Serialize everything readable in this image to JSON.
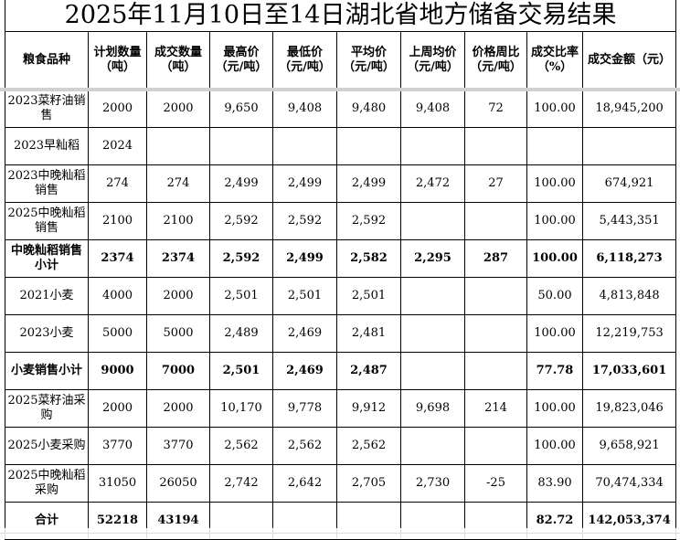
{
  "title": "2025年11月10日至14日湖北省地方储备交易结果",
  "table": {
    "columns": [
      "粮食品种",
      "计划数量\n（吨）",
      "成交数量\n（吨）",
      "最高价\n（元/吨）",
      "最低价\n（元/吨）",
      "平均价\n（元/吨）",
      "上周均价\n（元/吨）",
      "价格周比\n（元/吨）",
      "成交比率\n（%）",
      "成交金额（元）"
    ],
    "rows": [
      {
        "bold": false,
        "cells": [
          "2023菜籽油销售",
          "2000",
          "2000",
          "9,650",
          "9,408",
          "9,480",
          "9,408",
          "72",
          "100.00",
          "18,945,200"
        ]
      },
      {
        "bold": false,
        "cells": [
          "2023早籼稻",
          "2024",
          "",
          "",
          "",
          "",
          "",
          "",
          "",
          ""
        ]
      },
      {
        "bold": false,
        "cells": [
          "2023中晚籼稻销售",
          "274",
          "274",
          "2,499",
          "2,499",
          "2,499",
          "2,472",
          "27",
          "100.00",
          "674,921"
        ]
      },
      {
        "bold": false,
        "cells": [
          "2025中晚籼稻销售",
          "2100",
          "2100",
          "2,592",
          "2,592",
          "2,592",
          "",
          "",
          "100.00",
          "5,443,351"
        ]
      },
      {
        "bold": true,
        "cells": [
          "中晚籼稻销售小计",
          "2374",
          "2374",
          "2,592",
          "2,499",
          "2,582",
          "2,295",
          "287",
          "100.00",
          "6,118,273"
        ]
      },
      {
        "bold": false,
        "cells": [
          "2021小麦",
          "4000",
          "2000",
          "2,501",
          "2,501",
          "2,501",
          "",
          "",
          "50.00",
          "4,813,848"
        ]
      },
      {
        "bold": false,
        "cells": [
          "2023小麦",
          "5000",
          "5000",
          "2,489",
          "2,469",
          "2,481",
          "",
          "",
          "100.00",
          "12,219,753"
        ]
      },
      {
        "bold": true,
        "cells": [
          "小麦销售小计",
          "9000",
          "7000",
          "2,501",
          "2,469",
          "2,487",
          "",
          "",
          "77.78",
          "17,033,601"
        ]
      },
      {
        "bold": false,
        "cells": [
          "2025菜籽油采购",
          "2000",
          "2000",
          "10,170",
          "9,778",
          "9,912",
          "9,698",
          "214",
          "100.00",
          "19,823,046"
        ]
      },
      {
        "bold": false,
        "cells": [
          "2025小麦采购",
          "3770",
          "3770",
          "2,562",
          "2,562",
          "2,562",
          "",
          "",
          "100.00",
          "9,658,921"
        ]
      },
      {
        "bold": false,
        "cells": [
          "2025中晚籼稻采购",
          "31050",
          "26050",
          "2,742",
          "2,642",
          "2,705",
          "2,730",
          "-25",
          "83.90",
          "70,474,334"
        ]
      },
      {
        "bold": true,
        "cells": [
          "合计",
          "52218",
          "43194",
          "",
          "",
          "",
          "",
          "",
          "82.72",
          "142,053,374"
        ]
      }
    ]
  },
  "colors": {
    "background": "#ffffff",
    "text": "#000000",
    "border": "#000000",
    "split_bar": "#d1d1d1",
    "grid_faint": "#dcdcdc"
  }
}
